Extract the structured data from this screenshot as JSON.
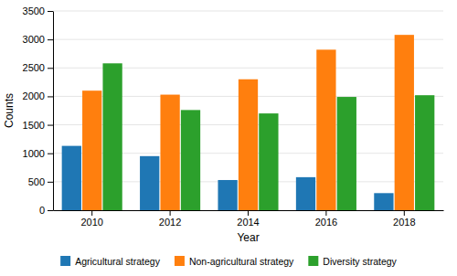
{
  "chart_data": {
    "type": "bar",
    "xlabel": "Year",
    "ylabel": "Counts",
    "categories": [
      "2010",
      "2012",
      "2014",
      "2016",
      "2018"
    ],
    "series": [
      {
        "name": "Agricultural strategy",
        "values": [
          1130,
          950,
          530,
          580,
          300
        ]
      },
      {
        "name": "Non-agricultural strategy",
        "values": [
          2100,
          2030,
          2300,
          2820,
          3080
        ]
      },
      {
        "name": "Diversity strategy",
        "values": [
          2580,
          1760,
          1700,
          1990,
          2020
        ]
      }
    ],
    "ylim": [
      0,
      3500
    ],
    "yticks": [
      0,
      500,
      1000,
      1500,
      2000,
      2500,
      3000,
      3500
    ],
    "grid": true,
    "legend": "bottom"
  }
}
